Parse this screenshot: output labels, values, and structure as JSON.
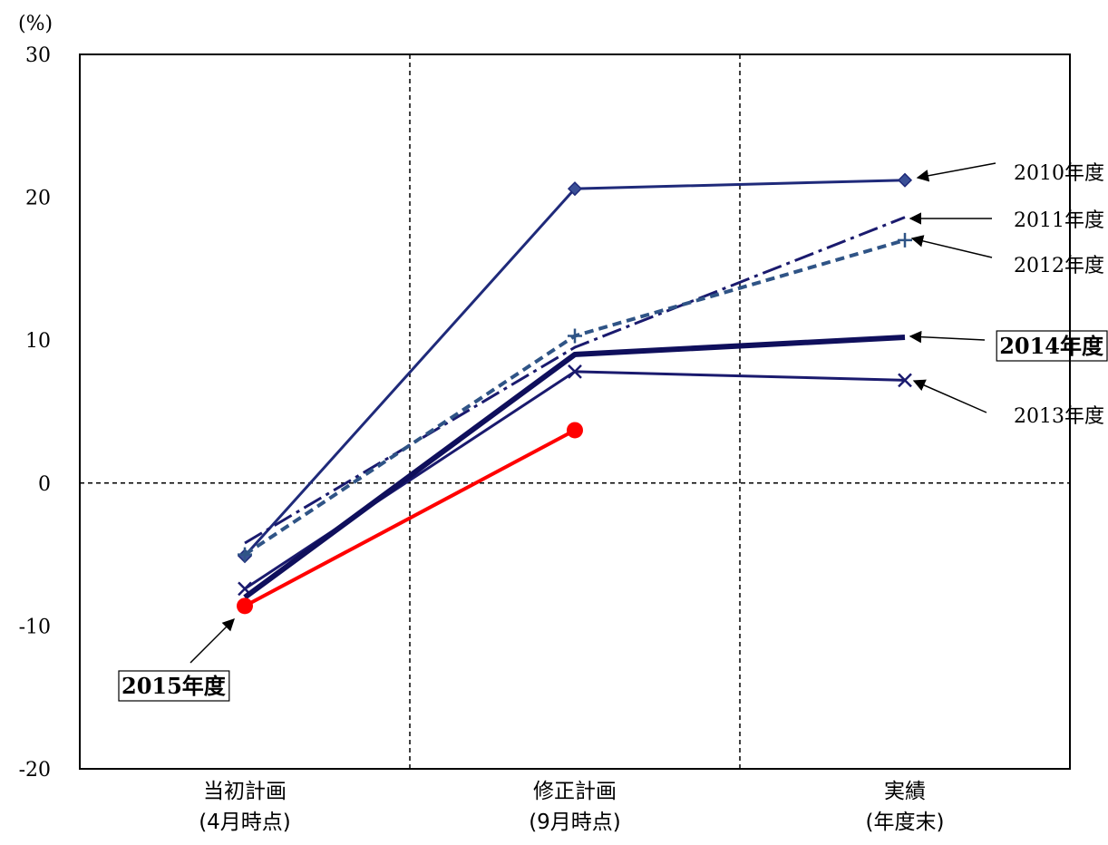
{
  "chart_data": {
    "type": "line",
    "y_unit_label": "(%)",
    "ylim": [
      -20,
      30
    ],
    "yticks": [
      "30",
      "20",
      "10",
      "0",
      "-10",
      "-20"
    ],
    "ytick_values": [
      30,
      20,
      10,
      0,
      -10,
      -20
    ],
    "categories": [
      {
        "line1": "当初計画",
        "line2": "(4月時点)"
      },
      {
        "line1": "修正計画",
        "line2": "(9月時点)"
      },
      {
        "line1": "実績",
        "line2": "(年度末)"
      }
    ],
    "grid": "dashed vertical separators between categories; dashed zero line",
    "series": [
      {
        "name": "2010年度",
        "values": [
          -5.1,
          20.6,
          21.2
        ],
        "color": "#1f2a7a",
        "dash": "",
        "width": 3,
        "marker": "diamond",
        "label_boxed": false
      },
      {
        "name": "2011年度",
        "values": [
          -4.2,
          9.5,
          18.6
        ],
        "color": "#1a1a6e",
        "dash": "22,6,4,6",
        "width": 3,
        "marker": "none",
        "label_boxed": false
      },
      {
        "name": "2012年度",
        "values": [
          -5.0,
          10.3,
          17.0
        ],
        "color": "#2f5486",
        "dash": "10,6",
        "width": 4,
        "marker": "plus",
        "label_boxed": false
      },
      {
        "name": "2013年度",
        "values": [
          -7.4,
          7.8,
          7.2
        ],
        "color": "#1a1a6e",
        "dash": "",
        "width": 3,
        "marker": "x",
        "label_boxed": false
      },
      {
        "name": "2014年度",
        "values": [
          -8.0,
          9.0,
          10.2
        ],
        "color": "#0f0f5c",
        "dash": "",
        "width": 6,
        "marker": "none",
        "label_boxed": true
      },
      {
        "name": "2015年度",
        "values": [
          -8.6,
          3.7,
          null
        ],
        "color": "#ff0000",
        "dash": "",
        "width": 4,
        "marker": "circle",
        "label_boxed": true
      }
    ]
  }
}
